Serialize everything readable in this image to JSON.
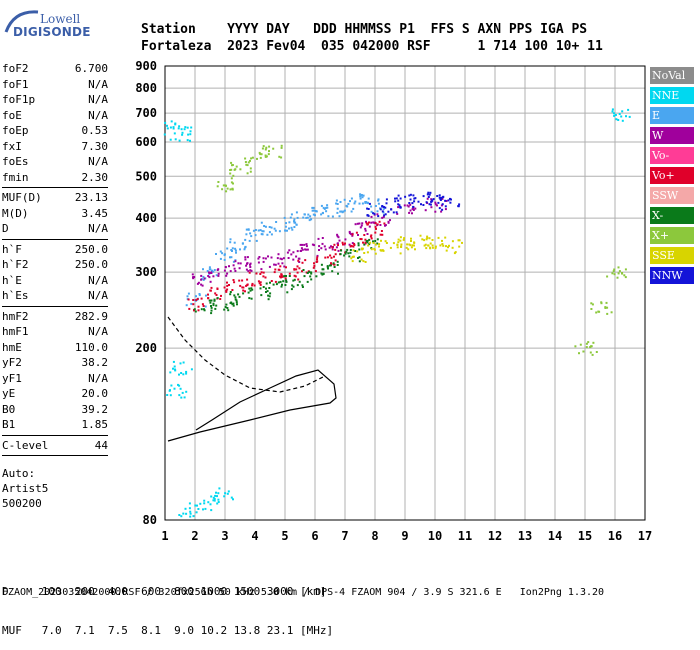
{
  "logo": {
    "top": "Lowell",
    "bottom": "DIGISONDE"
  },
  "header": {
    "line1": "Station    YYYY DAY   DDD HHMMSS P1  FFS S AXN PPS IGA PS",
    "line2": "Fortaleza  2023 Fev04  035 042000 RSF      1 714 100 10+ 11"
  },
  "params": [
    {
      "name": "foF2",
      "value": "6.700",
      "sep_after": false
    },
    {
      "name": "foF1",
      "value": "N/A",
      "sep_after": false
    },
    {
      "name": "foF1p",
      "value": "N/A",
      "sep_after": false
    },
    {
      "name": "foE",
      "value": "N/A",
      "sep_after": false
    },
    {
      "name": "foEp",
      "value": "0.53",
      "sep_after": false
    },
    {
      "name": "fxI",
      "value": "7.30",
      "sep_after": false
    },
    {
      "name": "foEs",
      "value": "N/A",
      "sep_after": false
    },
    {
      "name": "fmin",
      "value": "2.30",
      "sep_after": true
    },
    {
      "name": "MUF(D)",
      "value": "23.13",
      "sep_after": false
    },
    {
      "name": "M(D)",
      "value": "3.45",
      "sep_after": false
    },
    {
      "name": "D",
      "value": "N/A",
      "sep_after": true
    },
    {
      "name": "h`F",
      "value": "250.0",
      "sep_after": false
    },
    {
      "name": "h`F2",
      "value": "250.0",
      "sep_after": false
    },
    {
      "name": "h`E",
      "value": "N/A",
      "sep_after": false
    },
    {
      "name": "h`Es",
      "value": "N/A",
      "sep_after": true
    },
    {
      "name": "hmF2",
      "value": "282.9",
      "sep_after": false
    },
    {
      "name": "hmF1",
      "value": "N/A",
      "sep_after": false
    },
    {
      "name": "hmE",
      "value": "110.0",
      "sep_after": false
    },
    {
      "name": "yF2",
      "value": "38.2",
      "sep_after": false
    },
    {
      "name": "yF1",
      "value": "N/A",
      "sep_after": false
    },
    {
      "name": "yE",
      "value": "20.0",
      "sep_after": false
    },
    {
      "name": "B0",
      "value": "39.2",
      "sep_after": false
    },
    {
      "name": "B1",
      "value": "1.85",
      "sep_after": true
    },
    {
      "name": "C-level",
      "value": "44",
      "sep_after": true
    }
  ],
  "auto": [
    "Auto:",
    "Artist5",
    "500200"
  ],
  "legend": [
    {
      "label": "NoVal",
      "color": "#8c8c8c"
    },
    {
      "label": "NNE",
      "color": "#00d8f0"
    },
    {
      "label": "E",
      "color": "#4aa6f0"
    },
    {
      "label": "W",
      "color": "#a0009c"
    },
    {
      "label": "Vo-",
      "color": "#ff3c96"
    },
    {
      "label": "Vo+",
      "color": "#e0002a"
    },
    {
      "label": "SSW",
      "color": "#f4a8a8"
    },
    {
      "label": "X-",
      "color": "#0a7a1a"
    },
    {
      "label": "X+",
      "color": "#8cc83c"
    },
    {
      "label": "SSE",
      "color": "#d8d400"
    },
    {
      "label": "NNW",
      "color": "#1414d8"
    }
  ],
  "bottom": {
    "line1": "D     100  200  400  600  800 1000 1500 3000 [km]",
    "line2": "MUF   7.0  7.1  7.5  8.1  9.0 10.2 13.8 23.1 [MHz]"
  },
  "footer": "FZAOM_2023035042000.RSF / 320fx256h 50 kHz 5.0 km / DPS-4 FZAOM 904 / 3.9 S 321.6 E   Ion2Png 1.3.20",
  "chart_data": {
    "type": "scatter",
    "x_ticks": [
      "1",
      "2",
      "3",
      "4",
      "5",
      "6",
      "7",
      "8",
      "9",
      "10",
      "11",
      "12",
      "13",
      "14",
      "15",
      "16",
      "17"
    ],
    "y_ticks": [
      "80",
      "200",
      "300",
      "400",
      "500",
      "600",
      "700",
      "800",
      "900"
    ],
    "xlim": [
      1,
      17
    ],
    "y_scale": "log",
    "ylim": [
      80,
      900
    ],
    "grid": true,
    "series": [
      {
        "color": "#4aa6f0",
        "points": [
          [
            2.0,
            260
          ],
          [
            2.5,
            300
          ],
          [
            3.0,
            330
          ],
          [
            3.5,
            350
          ],
          [
            4.0,
            365
          ],
          [
            4.5,
            380
          ],
          [
            5.0,
            390
          ],
          [
            5.5,
            400
          ],
          [
            6.0,
            410
          ],
          [
            6.5,
            420
          ],
          [
            7.0,
            430
          ],
          [
            7.5,
            440
          ],
          [
            8.0,
            430
          ]
        ]
      },
      {
        "color": "#a0009c",
        "points": [
          [
            2.2,
            290
          ],
          [
            2.8,
            300
          ],
          [
            3.4,
            310
          ],
          [
            4.0,
            315
          ],
          [
            4.6,
            320
          ],
          [
            5.2,
            330
          ],
          [
            5.8,
            340
          ],
          [
            6.4,
            350
          ],
          [
            7.0,
            360
          ],
          [
            7.6,
            380
          ],
          [
            8.2,
            400
          ],
          [
            9.0,
            420
          ],
          [
            10.0,
            430
          ]
        ]
      },
      {
        "color": "#e0002a",
        "points": [
          [
            2.1,
            255
          ],
          [
            2.7,
            270
          ],
          [
            3.3,
            280
          ],
          [
            3.9,
            290
          ],
          [
            4.5,
            295
          ],
          [
            5.1,
            300
          ],
          [
            5.7,
            310
          ],
          [
            6.3,
            320
          ],
          [
            6.9,
            340
          ],
          [
            7.5,
            360
          ],
          [
            8.0,
            380
          ]
        ]
      },
      {
        "color": "#0a7a1a",
        "points": [
          [
            2.3,
            250
          ],
          [
            2.9,
            255
          ],
          [
            3.5,
            262
          ],
          [
            4.1,
            270
          ],
          [
            4.7,
            278
          ],
          [
            5.3,
            285
          ],
          [
            5.9,
            295
          ],
          [
            6.5,
            310
          ],
          [
            7.1,
            330
          ],
          [
            7.7,
            350
          ]
        ]
      },
      {
        "color": "#d8d400",
        "points": [
          [
            7.5,
            330
          ],
          [
            8.0,
            340
          ],
          [
            8.5,
            345
          ],
          [
            9.0,
            350
          ],
          [
            9.5,
            355
          ],
          [
            10.0,
            350
          ],
          [
            10.5,
            345
          ]
        ]
      },
      {
        "color": "#1414d8",
        "points": [
          [
            8.0,
            420
          ],
          [
            8.5,
            430
          ],
          [
            9.0,
            440
          ],
          [
            9.5,
            445
          ],
          [
            10.0,
            440
          ],
          [
            10.5,
            435
          ]
        ]
      },
      {
        "color": "#8cc83c",
        "points": [
          [
            3.0,
            480
          ],
          [
            3.5,
            520
          ],
          [
            4.0,
            550
          ],
          [
            4.5,
            570
          ],
          [
            15.0,
            200
          ],
          [
            15.5,
            250
          ],
          [
            16.0,
            300
          ]
        ]
      },
      {
        "color": "#00d8f0",
        "points": [
          [
            1.3,
            650
          ],
          [
            1.5,
            630
          ],
          [
            1.4,
            160
          ],
          [
            1.5,
            180
          ],
          [
            1.8,
            85
          ],
          [
            2.4,
            88
          ],
          [
            2.9,
            92
          ],
          [
            16.2,
            700
          ]
        ]
      }
    ]
  }
}
